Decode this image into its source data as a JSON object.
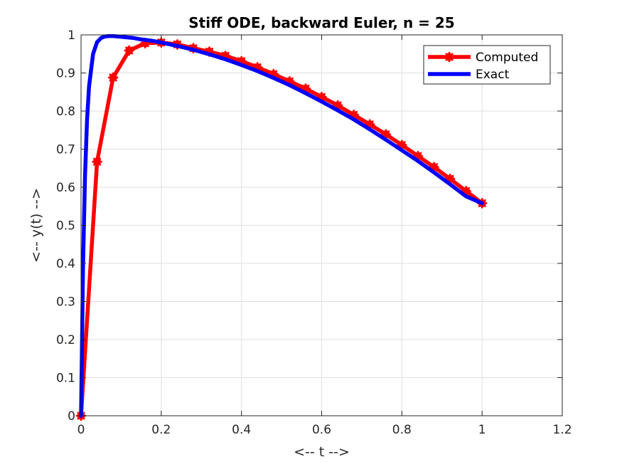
{
  "chart_data": {
    "type": "line",
    "title": "Stiff ODE, backward Euler, n = 25",
    "xlabel": "<-- t -->",
    "ylabel": "<-- y(t) -->",
    "xlim": [
      0,
      1.2
    ],
    "ylim": [
      0,
      1
    ],
    "xticks": [
      0,
      0.2,
      0.4,
      0.6,
      0.8,
      1,
      1.2
    ],
    "yticks": [
      0,
      0.1,
      0.2,
      0.3,
      0.4,
      0.5,
      0.6,
      0.7,
      0.8,
      0.9,
      1
    ],
    "xtick_labels": [
      "0",
      "0.2",
      "0.4",
      "0.6",
      "0.8",
      "1",
      "1.2"
    ],
    "ytick_labels": [
      "0",
      "0.1",
      "0.2",
      "0.3",
      "0.4",
      "0.5",
      "0.6",
      "0.7",
      "0.8",
      "0.9",
      "1"
    ],
    "grid": true,
    "legend_position": "top-right",
    "series": [
      {
        "name": "Computed",
        "color": "#ff0000",
        "marker": "asterisk",
        "x": [
          0,
          0.04,
          0.08,
          0.12,
          0.16,
          0.2,
          0.24,
          0.28,
          0.32,
          0.36,
          0.4,
          0.44,
          0.48,
          0.52,
          0.56,
          0.6,
          0.64,
          0.68,
          0.72,
          0.76,
          0.8,
          0.84,
          0.88,
          0.92,
          0.96,
          1.0
        ],
        "y": [
          0,
          0.667,
          0.888,
          0.959,
          0.978,
          0.98,
          0.975,
          0.965,
          0.956,
          0.945,
          0.931,
          0.915,
          0.897,
          0.878,
          0.859,
          0.837,
          0.815,
          0.79,
          0.765,
          0.739,
          0.711,
          0.682,
          0.653,
          0.622,
          0.59,
          0.558
        ]
      },
      {
        "name": "Exact",
        "color": "#0000ff",
        "marker": "none",
        "x": [
          0,
          0.005,
          0.01,
          0.015,
          0.02,
          0.03,
          0.04,
          0.05,
          0.06,
          0.07,
          0.08,
          0.09,
          0.1,
          0.11,
          0.12,
          0.13,
          0.14,
          0.15,
          0.16,
          0.18,
          0.2,
          0.24,
          0.28,
          0.32,
          0.36,
          0.4,
          0.44,
          0.48,
          0.52,
          0.56,
          0.6,
          0.64,
          0.68,
          0.72,
          0.76,
          0.8,
          0.84,
          0.88,
          0.92,
          0.96,
          1.0
        ],
        "y": [
          0,
          0.394,
          0.632,
          0.777,
          0.865,
          0.95,
          0.981,
          0.992,
          0.996,
          0.997,
          0.997,
          0.996,
          0.995,
          0.994,
          0.993,
          0.992,
          0.99,
          0.988,
          0.987,
          0.984,
          0.98,
          0.971,
          0.961,
          0.949,
          0.936,
          0.921,
          0.905,
          0.887,
          0.868,
          0.847,
          0.825,
          0.802,
          0.778,
          0.752,
          0.725,
          0.697,
          0.669,
          0.639,
          0.608,
          0.576,
          0.558
        ]
      }
    ]
  }
}
